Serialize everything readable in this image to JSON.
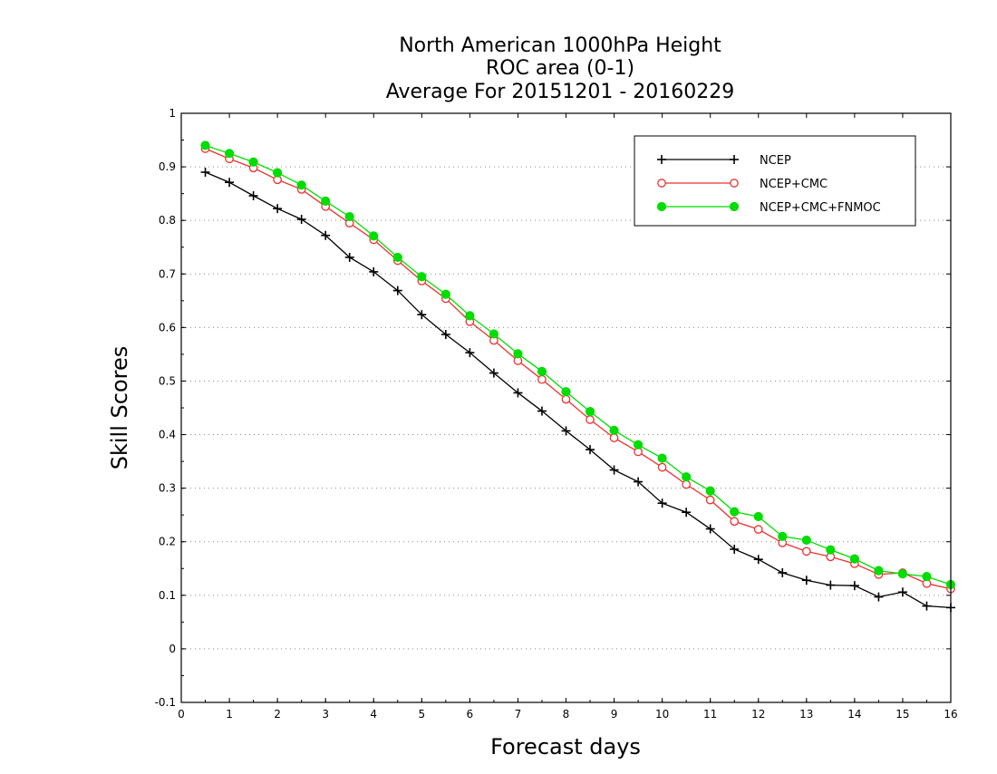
{
  "chart_data": {
    "type": "line",
    "title": "North American 1000hPa Height",
    "subtitle_lines": [
      "ROC area (0-1)",
      "Average For 20151201 - 20160229"
    ],
    "xlabel": "Forecast days",
    "ylabel": "Skill Scores",
    "xlim": [
      0,
      16
    ],
    "ylim": [
      -0.1,
      1
    ],
    "xticks": [
      0,
      1,
      2,
      3,
      4,
      5,
      6,
      7,
      8,
      9,
      10,
      11,
      12,
      13,
      14,
      15,
      16
    ],
    "yticks": [
      -0.1,
      0,
      0.1,
      0.2,
      0.3,
      0.4,
      0.5,
      0.6,
      0.7,
      0.8,
      0.9,
      1
    ],
    "ytick_labels": [
      "-0.1",
      "0",
      "0.1",
      "0.2",
      "0.3",
      "0.4",
      "0.5",
      "0.6",
      "0.7",
      "0.8",
      "0.9",
      "1"
    ],
    "grid": "horizontal-dotted",
    "legend_position": "top-right",
    "x": [
      0.5,
      1,
      1.5,
      2,
      2.5,
      3,
      3.5,
      4,
      4.5,
      5,
      5.5,
      6,
      6.5,
      7,
      7.5,
      8,
      8.5,
      9,
      9.5,
      10,
      10.5,
      11,
      11.5,
      12,
      12.5,
      13,
      13.5,
      14,
      14.5,
      15,
      15.5,
      16
    ],
    "series": [
      {
        "name": "NCEP",
        "color": "#000000",
        "marker": "plus",
        "values": [
          0.89,
          0.871,
          0.846,
          0.822,
          0.802,
          0.772,
          0.731,
          0.704,
          0.669,
          0.624,
          0.587,
          0.553,
          0.515,
          0.478,
          0.444,
          0.407,
          0.372,
          0.334,
          0.312,
          0.272,
          0.255,
          0.224,
          0.186,
          0.167,
          0.142,
          0.128,
          0.119,
          0.118,
          0.097,
          0.106,
          0.08,
          0.077
        ]
      },
      {
        "name": "NCEP+CMC",
        "color": "#ee3030",
        "marker": "open-circle",
        "values": [
          0.934,
          0.915,
          0.898,
          0.876,
          0.858,
          0.826,
          0.795,
          0.764,
          0.725,
          0.687,
          0.654,
          0.611,
          0.576,
          0.538,
          0.503,
          0.466,
          0.428,
          0.394,
          0.368,
          0.339,
          0.307,
          0.278,
          0.238,
          0.223,
          0.198,
          0.182,
          0.172,
          0.159,
          0.139,
          0.142,
          0.122,
          0.112
        ]
      },
      {
        "name": "NCEP+CMC+FNMOC",
        "color": "#00dd00",
        "marker": "filled-circle",
        "values": [
          0.94,
          0.925,
          0.909,
          0.889,
          0.866,
          0.836,
          0.807,
          0.771,
          0.731,
          0.695,
          0.662,
          0.622,
          0.588,
          0.551,
          0.518,
          0.48,
          0.443,
          0.408,
          0.381,
          0.356,
          0.321,
          0.295,
          0.256,
          0.247,
          0.21,
          0.203,
          0.185,
          0.168,
          0.146,
          0.14,
          0.135,
          0.12
        ]
      }
    ]
  }
}
